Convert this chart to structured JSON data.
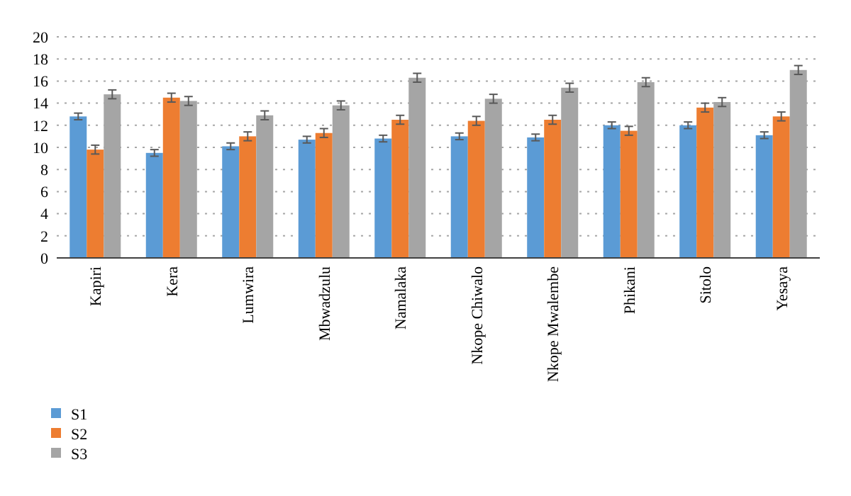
{
  "chart_data": {
    "type": "bar",
    "categories": [
      "Kapiri",
      "Kera",
      "Lumwira",
      "Mbwadzulu",
      "Namalaka",
      "Nkope Chiwalo",
      "Nkope Mwalembe",
      "Phikani",
      "Sitolo",
      "Yesaya"
    ],
    "series": [
      {
        "name": "S1",
        "color": "#5b9bd5",
        "values": [
          12.8,
          9.5,
          10.1,
          10.7,
          10.8,
          11.0,
          10.9,
          12.0,
          12.0,
          11.1
        ],
        "errors": [
          0.3,
          0.3,
          0.3,
          0.3,
          0.3,
          0.3,
          0.3,
          0.3,
          0.3,
          0.3
        ]
      },
      {
        "name": "S2",
        "color": "#ed7d31",
        "values": [
          9.8,
          14.5,
          11.0,
          11.3,
          12.5,
          12.4,
          12.5,
          11.5,
          13.6,
          12.8
        ],
        "errors": [
          0.4,
          0.4,
          0.4,
          0.4,
          0.4,
          0.4,
          0.4,
          0.4,
          0.4,
          0.4
        ]
      },
      {
        "name": "S3",
        "color": "#a5a5a5",
        "values": [
          14.8,
          14.2,
          12.9,
          13.8,
          16.3,
          14.4,
          15.4,
          15.9,
          14.1,
          17.0
        ],
        "errors": [
          0.4,
          0.4,
          0.4,
          0.4,
          0.4,
          0.4,
          0.4,
          0.4,
          0.4,
          0.4
        ]
      }
    ],
    "ylim": [
      0,
      20
    ],
    "yticks": [
      0,
      2,
      4,
      6,
      8,
      10,
      12,
      14,
      16,
      18,
      20
    ],
    "grid": "y",
    "legend": "bottom left"
  }
}
